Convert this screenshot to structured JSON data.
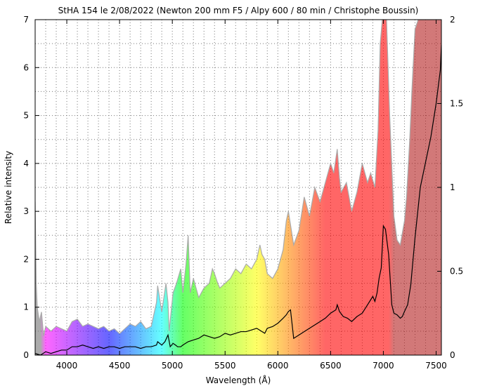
{
  "chart_data": {
    "type": "line",
    "title": "StHA 154 le 2/08/2022 (Newton 200 mm F5 / Alpy 600 / 80 min / Christophe Boussin)",
    "xlabel": "Wavelength (Å)",
    "ylabel": "Relative intensity",
    "xlim": [
      3700,
      7550
    ],
    "ylim": [
      0,
      7
    ],
    "y2lim": [
      0,
      2
    ],
    "xticks": [
      4000,
      4500,
      5000,
      5500,
      6000,
      6500,
      7000,
      7500
    ],
    "yticks": [
      0,
      1,
      2,
      3,
      4,
      5,
      6,
      7
    ],
    "y2ticks": [
      0,
      0.5,
      1,
      1.5,
      2
    ],
    "y2ticklabels": [
      "0",
      "0.5",
      "1",
      "1.5",
      "2"
    ],
    "grid": true,
    "series": [
      {
        "axis": "y",
        "color": "#aaaaaa",
        "fill": "spectrum-colored",
        "x": [
          3700,
          3710,
          3720,
          3740,
          3760,
          3780,
          3800,
          3850,
          3900,
          3950,
          4000,
          4050,
          4100,
          4150,
          4200,
          4250,
          4300,
          4350,
          4400,
          4450,
          4500,
          4550,
          4600,
          4650,
          4700,
          4750,
          4800,
          4850,
          4861,
          4900,
          4920,
          4940,
          4959,
          4970,
          5007,
          5040,
          5080,
          5100,
          5130,
          5150,
          5170,
          5200,
          5250,
          5300,
          5350,
          5380,
          5400,
          5430,
          5450,
          5500,
          5550,
          5600,
          5650,
          5700,
          5750,
          5800,
          5830,
          5850,
          5876,
          5900,
          5950,
          6000,
          6050,
          6080,
          6100,
          6150,
          6200,
          6250,
          6300,
          6350,
          6400,
          6450,
          6500,
          6530,
          6563,
          6584,
          6600,
          6650,
          6700,
          6750,
          6800,
          6850,
          6880,
          6920,
          6950,
          6970,
          6990,
          7010,
          7030,
          7060,
          7100,
          7130,
          7160,
          7200,
          7220,
          7250,
          7270,
          7300,
          7330,
          7350,
          7400,
          7450,
          7500,
          7540,
          7550
        ],
        "values": [
          3.2,
          1.5,
          1.0,
          0.7,
          0.9,
          0.4,
          0.6,
          0.5,
          0.6,
          0.55,
          0.5,
          0.7,
          0.75,
          0.6,
          0.65,
          0.6,
          0.55,
          0.6,
          0.5,
          0.55,
          0.45,
          0.55,
          0.65,
          0.6,
          0.7,
          0.55,
          0.6,
          1.1,
          1.45,
          0.9,
          1.2,
          1.5,
          1.1,
          0.5,
          1.3,
          1.5,
          1.8,
          1.3,
          1.9,
          2.5,
          1.3,
          1.6,
          1.2,
          1.4,
          1.5,
          1.8,
          1.7,
          1.5,
          1.4,
          1.5,
          1.6,
          1.8,
          1.7,
          1.9,
          1.8,
          2.0,
          2.3,
          2.1,
          2.0,
          1.7,
          1.6,
          1.8,
          2.2,
          2.8,
          3.0,
          2.3,
          2.6,
          3.3,
          2.9,
          3.5,
          3.2,
          3.6,
          4.0,
          3.8,
          4.3,
          3.7,
          3.4,
          3.6,
          3.0,
          3.4,
          4.0,
          3.6,
          3.8,
          3.5,
          4.7,
          6.5,
          7.0,
          7.0,
          7.0,
          5.0,
          2.9,
          2.4,
          2.3,
          2.8,
          3.3,
          4.5,
          5.5,
          6.8,
          7.0,
          7.0,
          7.0,
          7.0,
          7.0,
          7.0,
          7.0
        ]
      },
      {
        "axis": "y2",
        "color": "#000000",
        "x": [
          3700,
          3750,
          3800,
          3850,
          3900,
          3950,
          4000,
          4050,
          4100,
          4150,
          4200,
          4250,
          4300,
          4350,
          4400,
          4450,
          4500,
          4550,
          4600,
          4650,
          4700,
          4750,
          4800,
          4850,
          4861,
          4900,
          4930,
          4959,
          4980,
          5007,
          5030,
          5050,
          5080,
          5100,
          5150,
          5200,
          5250,
          5300,
          5350,
          5400,
          5450,
          5500,
          5550,
          5600,
          5650,
          5700,
          5750,
          5800,
          5850,
          5876,
          5900,
          5950,
          6000,
          6050,
          6080,
          6100,
          6120,
          6150,
          6200,
          6250,
          6300,
          6350,
          6400,
          6450,
          6500,
          6550,
          6563,
          6584,
          6620,
          6660,
          6700,
          6750,
          6800,
          6850,
          6880,
          6900,
          6920,
          6940,
          6960,
          6980,
          7000,
          7020,
          7050,
          7080,
          7100,
          7130,
          7160,
          7180,
          7200,
          7230,
          7260,
          7300,
          7350,
          7400,
          7450,
          7500,
          7540,
          7550
        ],
        "values": [
          0.01,
          0.0,
          0.02,
          0.01,
          0.02,
          0.03,
          0.03,
          0.05,
          0.05,
          0.06,
          0.05,
          0.04,
          0.05,
          0.04,
          0.05,
          0.05,
          0.04,
          0.05,
          0.05,
          0.05,
          0.04,
          0.05,
          0.05,
          0.06,
          0.08,
          0.06,
          0.08,
          0.12,
          0.05,
          0.07,
          0.06,
          0.05,
          0.05,
          0.06,
          0.08,
          0.09,
          0.1,
          0.12,
          0.11,
          0.1,
          0.11,
          0.13,
          0.12,
          0.13,
          0.14,
          0.14,
          0.15,
          0.16,
          0.14,
          0.13,
          0.16,
          0.17,
          0.19,
          0.22,
          0.24,
          0.26,
          0.27,
          0.1,
          0.12,
          0.14,
          0.16,
          0.18,
          0.2,
          0.22,
          0.25,
          0.27,
          0.3,
          0.26,
          0.23,
          0.22,
          0.2,
          0.23,
          0.25,
          0.3,
          0.33,
          0.35,
          0.32,
          0.37,
          0.46,
          0.52,
          0.77,
          0.75,
          0.6,
          0.3,
          0.25,
          0.24,
          0.22,
          0.23,
          0.26,
          0.3,
          0.42,
          0.7,
          1.0,
          1.15,
          1.3,
          1.5,
          1.7,
          1.85
        ]
      }
    ]
  }
}
